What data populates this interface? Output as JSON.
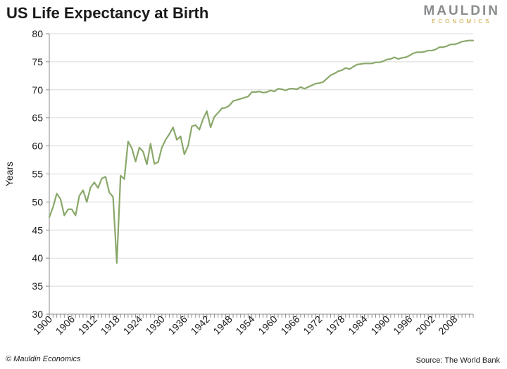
{
  "chart_data": {
    "type": "line",
    "title": "US Life Expectancy at Birth",
    "xlabel": "",
    "ylabel": "Years",
    "xlim": [
      1900,
      2013
    ],
    "ylim": [
      30,
      80
    ],
    "y_ticks": [
      30,
      35,
      40,
      45,
      50,
      55,
      60,
      65,
      70,
      75,
      80
    ],
    "x_ticks": [
      1900,
      1906,
      1912,
      1918,
      1924,
      1930,
      1936,
      1942,
      1948,
      1954,
      1960,
      1966,
      1972,
      1978,
      1984,
      1990,
      1996,
      2002,
      2008
    ],
    "grid": {
      "horizontal": true,
      "vertical": false
    },
    "series": [
      {
        "name": "US Life Expectancy at Birth",
        "color": "#8aa86a",
        "x": [
          1900,
          1901,
          1902,
          1903,
          1904,
          1905,
          1906,
          1907,
          1908,
          1909,
          1910,
          1911,
          1912,
          1913,
          1914,
          1915,
          1916,
          1917,
          1918,
          1919,
          1920,
          1921,
          1922,
          1923,
          1924,
          1925,
          1926,
          1927,
          1928,
          1929,
          1930,
          1931,
          1932,
          1933,
          1934,
          1935,
          1936,
          1937,
          1938,
          1939,
          1940,
          1941,
          1942,
          1943,
          1944,
          1945,
          1946,
          1947,
          1948,
          1949,
          1950,
          1951,
          1952,
          1953,
          1954,
          1955,
          1956,
          1957,
          1958,
          1959,
          1960,
          1961,
          1962,
          1963,
          1964,
          1965,
          1966,
          1967,
          1968,
          1969,
          1970,
          1971,
          1972,
          1973,
          1974,
          1975,
          1976,
          1977,
          1978,
          1979,
          1980,
          1981,
          1982,
          1983,
          1984,
          1985,
          1986,
          1987,
          1988,
          1989,
          1990,
          1991,
          1992,
          1993,
          1994,
          1995,
          1996,
          1997,
          1998,
          1999,
          2000,
          2001,
          2002,
          2003,
          2004,
          2005,
          2006,
          2007,
          2008,
          2009,
          2010,
          2011,
          2012,
          2013
        ],
        "values": [
          47.3,
          49.1,
          51.5,
          50.5,
          47.6,
          48.7,
          48.7,
          47.6,
          51.1,
          52.1,
          50.0,
          52.6,
          53.5,
          52.5,
          54.2,
          54.5,
          51.7,
          50.9,
          39.1,
          54.7,
          54.1,
          60.8,
          59.6,
          57.2,
          59.7,
          59.0,
          56.7,
          60.4,
          56.8,
          57.1,
          59.7,
          61.1,
          62.1,
          63.3,
          61.1,
          61.7,
          58.5,
          60.0,
          63.5,
          63.7,
          62.9,
          64.8,
          66.2,
          63.3,
          65.2,
          65.9,
          66.7,
          66.8,
          67.2,
          68.0,
          68.2,
          68.4,
          68.6,
          68.8,
          69.6,
          69.6,
          69.7,
          69.5,
          69.6,
          69.9,
          69.7,
          70.2,
          70.1,
          69.9,
          70.2,
          70.2,
          70.1,
          70.5,
          70.2,
          70.5,
          70.8,
          71.1,
          71.2,
          71.4,
          72.0,
          72.6,
          72.9,
          73.3,
          73.5,
          73.9,
          73.7,
          74.1,
          74.5,
          74.6,
          74.7,
          74.7,
          74.7,
          74.9,
          74.9,
          75.1,
          75.4,
          75.5,
          75.8,
          75.5,
          75.7,
          75.8,
          76.1,
          76.5,
          76.7,
          76.7,
          76.8,
          77.0,
          77.0,
          77.2,
          77.6,
          77.6,
          77.8,
          78.1,
          78.1,
          78.3,
          78.6,
          78.7,
          78.8,
          78.8
        ]
      }
    ]
  },
  "header": {
    "logo_top": "MAULDIN",
    "logo_bottom": "ECONOMICS"
  },
  "footer": {
    "copyright": "© Mauldin Economics",
    "source": "Source: The World Bank"
  }
}
